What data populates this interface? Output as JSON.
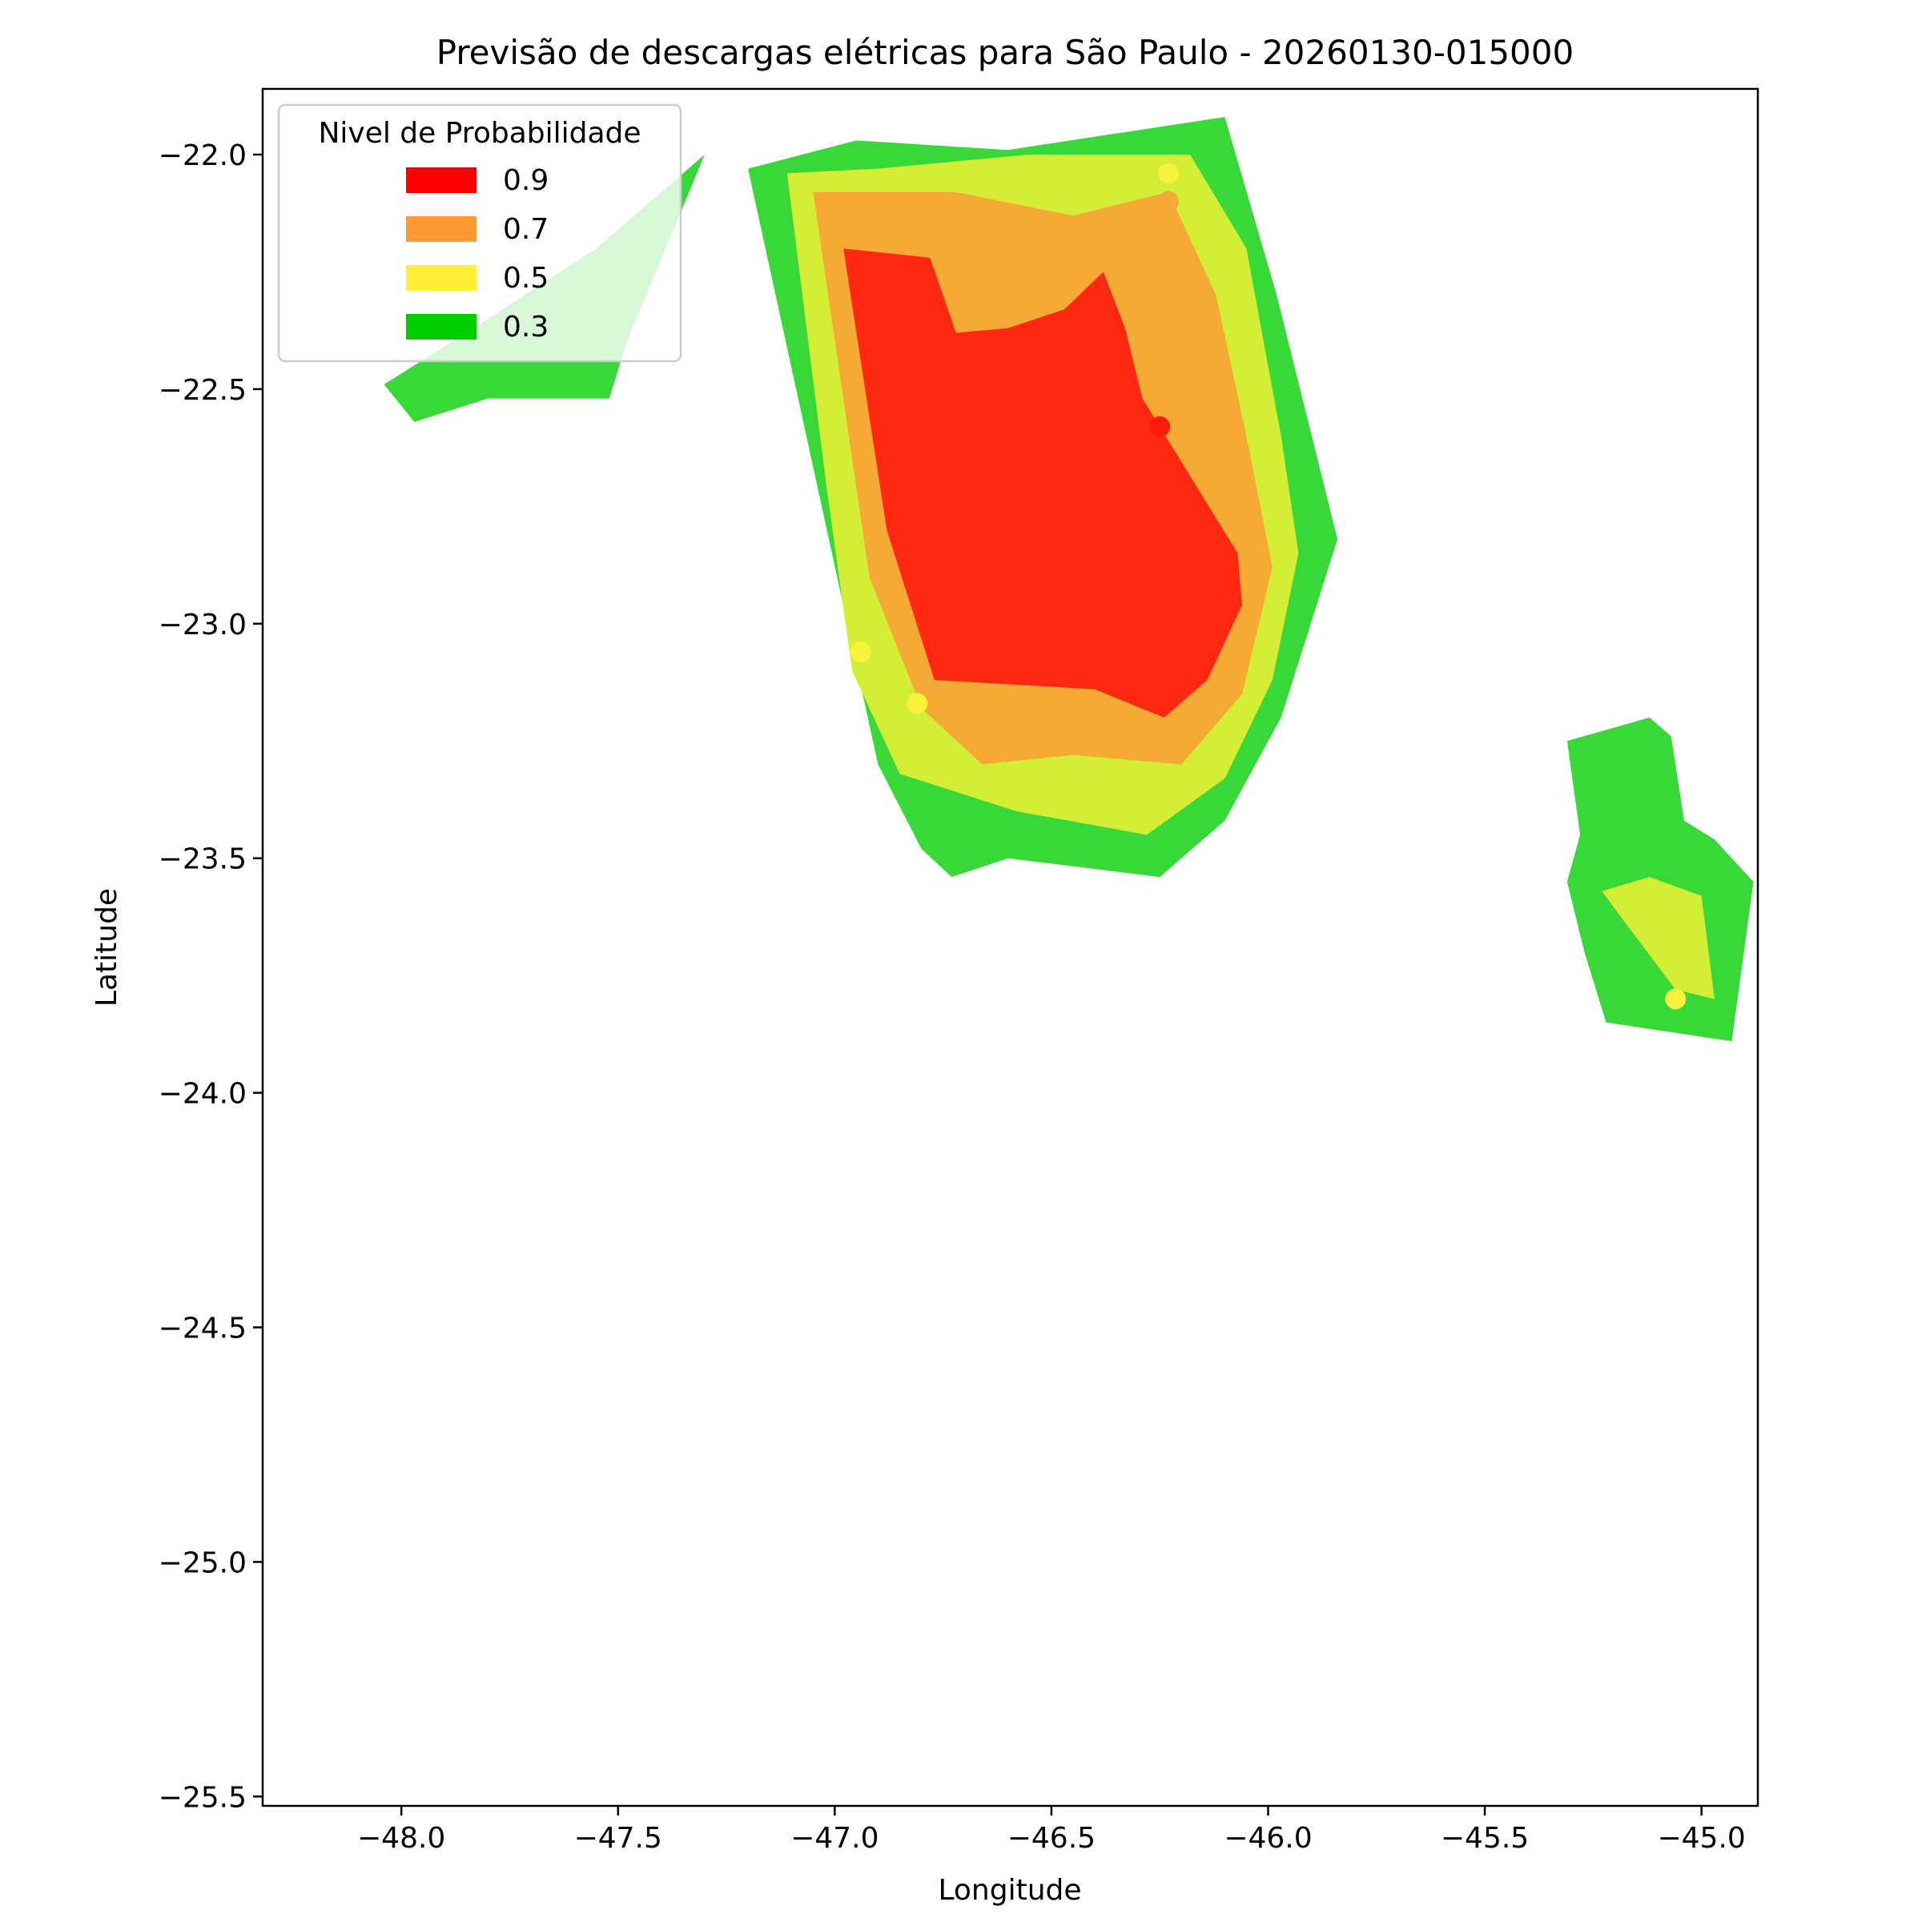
{
  "chart_data": {
    "type": "contour-map",
    "title": "Previsão de descargas elétricas para São Paulo - 20260130-015000",
    "xlabel": "Longitude",
    "ylabel": "Latitude",
    "xlim": [
      -48.32,
      -44.87
    ],
    "ylim": [
      -25.52,
      -21.86
    ],
    "xticks": [
      -48.0,
      -47.5,
      -47.0,
      -46.5,
      -46.0,
      -45.5,
      -45.0
    ],
    "xtick_labels": [
      "−48.0",
      "−47.5",
      "−47.0",
      "−46.5",
      "−46.0",
      "−45.5",
      "−45.0"
    ],
    "yticks": [
      -22.0,
      -22.5,
      -23.0,
      -23.5,
      -24.0,
      -24.5,
      -25.0,
      -25.5
    ],
    "ytick_labels": [
      "−22.0",
      "−22.5",
      "−23.0",
      "−23.5",
      "−24.0",
      "−24.5",
      "−25.0",
      "−25.5"
    ],
    "grid": false,
    "legend": {
      "title": "Nivel de Probabilidade",
      "position": "top-left",
      "entries": [
        {
          "label": "0.9",
          "color": "#ff0000"
        },
        {
          "label": "0.7",
          "color": "#ff9933"
        },
        {
          "label": "0.5",
          "color": "#ffee33"
        },
        {
          "label": "0.3",
          "color": "#00cc00"
        }
      ]
    },
    "fill_colors": {
      "0.3": "#38d838",
      "0.5": "#d4ee36",
      "0.7": "#f5aa36",
      "0.9": "#ff2810"
    },
    "regions": [
      {
        "level": "0.3",
        "polygon": [
          [
            -47.2,
            -22.03
          ],
          [
            -46.95,
            -21.97
          ],
          [
            -46.6,
            -21.99
          ],
          [
            -46.1,
            -21.92
          ],
          [
            -45.98,
            -22.3
          ],
          [
            -45.84,
            -22.82
          ],
          [
            -45.97,
            -23.2
          ],
          [
            -46.1,
            -23.42
          ],
          [
            -46.25,
            -23.54
          ],
          [
            -46.6,
            -23.5
          ],
          [
            -46.73,
            -23.54
          ],
          [
            -46.8,
            -23.48
          ],
          [
            -46.9,
            -23.3
          ]
        ]
      },
      {
        "level": "0.5",
        "polygon": [
          [
            -47.11,
            -22.04
          ],
          [
            -46.9,
            -22.03
          ],
          [
            -46.55,
            -22.0
          ],
          [
            -46.18,
            -22.0
          ],
          [
            -46.05,
            -22.2
          ],
          [
            -45.97,
            -22.6
          ],
          [
            -45.93,
            -22.85
          ],
          [
            -45.99,
            -23.12
          ],
          [
            -46.1,
            -23.33
          ],
          [
            -46.28,
            -23.45
          ],
          [
            -46.58,
            -23.4
          ],
          [
            -46.85,
            -23.32
          ],
          [
            -46.96,
            -23.1
          ],
          [
            -47.02,
            -22.7
          ]
        ]
      },
      {
        "level": "0.7",
        "polygon": [
          [
            -47.05,
            -22.08
          ],
          [
            -46.72,
            -22.08
          ],
          [
            -46.45,
            -22.13
          ],
          [
            -46.23,
            -22.08
          ],
          [
            -46.12,
            -22.3
          ],
          [
            -46.05,
            -22.6
          ],
          [
            -45.99,
            -22.88
          ],
          [
            -46.06,
            -23.15
          ],
          [
            -46.2,
            -23.3
          ],
          [
            -46.45,
            -23.28
          ],
          [
            -46.66,
            -23.3
          ],
          [
            -46.8,
            -23.18
          ],
          [
            -46.92,
            -22.9
          ]
        ]
      },
      {
        "level": "0.9",
        "polygon": [
          [
            -46.98,
            -22.2
          ],
          [
            -46.78,
            -22.22
          ],
          [
            -46.72,
            -22.38
          ],
          [
            -46.6,
            -22.37
          ],
          [
            -46.47,
            -22.33
          ],
          [
            -46.38,
            -22.25
          ],
          [
            -46.33,
            -22.37
          ],
          [
            -46.29,
            -22.52
          ],
          [
            -46.17,
            -22.7
          ],
          [
            -46.07,
            -22.85
          ],
          [
            -46.06,
            -22.96
          ],
          [
            -46.14,
            -23.12
          ],
          [
            -46.24,
            -23.2
          ],
          [
            -46.4,
            -23.14
          ],
          [
            -46.58,
            -23.13
          ],
          [
            -46.77,
            -23.12
          ],
          [
            -46.88,
            -22.8
          ]
        ]
      },
      {
        "level": "0.3",
        "polygon": [
          [
            -48.04,
            -22.49
          ],
          [
            -47.85,
            -22.38
          ],
          [
            -47.55,
            -22.2
          ],
          [
            -47.35,
            -22.04
          ],
          [
            -47.3,
            -22.0
          ],
          [
            -47.48,
            -22.4
          ],
          [
            -47.52,
            -22.52
          ],
          [
            -47.8,
            -22.52
          ],
          [
            -47.97,
            -22.57
          ]
        ]
      },
      {
        "level": "0.3",
        "polygon": [
          [
            -45.31,
            -23.25
          ],
          [
            -45.12,
            -23.2
          ],
          [
            -45.07,
            -23.24
          ],
          [
            -45.04,
            -23.42
          ],
          [
            -44.97,
            -23.46
          ],
          [
            -44.88,
            -23.55
          ],
          [
            -44.93,
            -23.89
          ],
          [
            -45.22,
            -23.85
          ],
          [
            -45.27,
            -23.7
          ],
          [
            -45.31,
            -23.55
          ],
          [
            -45.28,
            -23.45
          ]
        ]
      },
      {
        "level": "0.5",
        "polygon": [
          [
            -45.23,
            -23.57
          ],
          [
            -45.12,
            -23.54
          ],
          [
            -45.0,
            -23.58
          ],
          [
            -44.97,
            -23.8
          ],
          [
            -45.06,
            -23.78
          ],
          [
            -45.19,
            -23.62
          ]
        ]
      }
    ],
    "points": [
      {
        "lon": -46.23,
        "lat": -22.04,
        "level": "0.5"
      },
      {
        "lon": -46.23,
        "lat": -22.1,
        "level": "0.7"
      },
      {
        "lon": -46.25,
        "lat": -22.58,
        "level": "0.9"
      },
      {
        "lon": -46.94,
        "lat": -23.06,
        "level": "0.5"
      },
      {
        "lon": -46.81,
        "lat": -23.17,
        "level": "0.5"
      },
      {
        "lon": -45.06,
        "lat": -23.8,
        "level": "0.5"
      }
    ],
    "point_colors": {
      "0.5": "#f7f23c",
      "0.7": "#f5aa36",
      "0.9": "#ff1a10"
    }
  }
}
